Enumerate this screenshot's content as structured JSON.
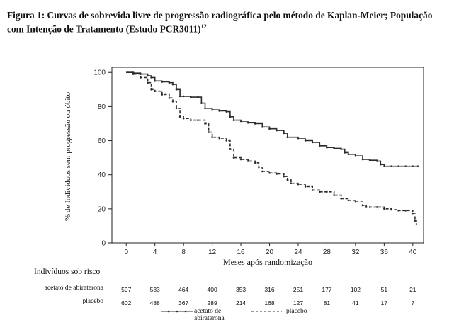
{
  "title": "Figura 1: Curvas de sobrevida livre de progressão radiográfica pelo método de Kaplan-Meier; População com Intenção de Tratamento (Estudo PCR3011)",
  "title_sup": "12",
  "chart_data": {
    "type": "line",
    "xlabel": "Meses após randomização",
    "ylabel": "% de Indivíduos sem progressão ou óbito",
    "xlim": [
      -2,
      41.5
    ],
    "ylim": [
      0,
      103
    ],
    "xticks": [
      0,
      4,
      8,
      12,
      16,
      20,
      24,
      28,
      32,
      36,
      40
    ],
    "yticks": [
      0,
      20,
      40,
      60,
      80,
      100
    ],
    "grid": false,
    "series": [
      {
        "name": "acetato de abiraterona",
        "style": "solid",
        "points": [
          [
            0,
            100
          ],
          [
            1,
            99.6
          ],
          [
            2,
            99
          ],
          [
            3,
            98
          ],
          [
            3.5,
            97
          ],
          [
            4,
            95
          ],
          [
            5,
            94.5
          ],
          [
            6,
            94
          ],
          [
            6.5,
            93
          ],
          [
            7,
            90
          ],
          [
            7.5,
            86
          ],
          [
            8,
            86
          ],
          [
            9,
            85.5
          ],
          [
            10,
            85.5
          ],
          [
            10.5,
            82
          ],
          [
            11,
            79
          ],
          [
            12,
            78
          ],
          [
            13,
            77.5
          ],
          [
            14,
            77
          ],
          [
            14.5,
            74
          ],
          [
            15,
            72
          ],
          [
            16,
            71
          ],
          [
            17,
            70.5
          ],
          [
            18,
            70
          ],
          [
            19,
            68
          ],
          [
            20,
            67
          ],
          [
            21,
            66
          ],
          [
            22,
            64
          ],
          [
            22.5,
            62
          ],
          [
            24,
            61
          ],
          [
            25,
            60
          ],
          [
            26,
            59
          ],
          [
            27,
            57
          ],
          [
            28,
            56
          ],
          [
            29,
            55.5
          ],
          [
            30,
            55
          ],
          [
            30.5,
            53
          ],
          [
            31,
            52
          ],
          [
            32,
            51
          ],
          [
            33,
            49
          ],
          [
            34,
            48.5
          ],
          [
            35,
            48
          ],
          [
            35.5,
            46
          ],
          [
            36,
            45
          ],
          [
            37,
            45
          ],
          [
            38,
            45
          ],
          [
            39,
            45
          ],
          [
            40,
            45
          ],
          [
            40.7,
            45
          ]
        ]
      },
      {
        "name": "placebo",
        "style": "dashed",
        "points": [
          [
            0,
            100
          ],
          [
            1,
            99
          ],
          [
            2,
            97
          ],
          [
            3,
            94
          ],
          [
            3.5,
            90
          ],
          [
            4,
            89
          ],
          [
            5,
            87
          ],
          [
            6,
            85
          ],
          [
            6.5,
            83
          ],
          [
            7,
            79
          ],
          [
            7.5,
            74
          ],
          [
            8,
            73
          ],
          [
            9,
            72
          ],
          [
            10,
            72
          ],
          [
            11,
            70
          ],
          [
            11.5,
            65
          ],
          [
            12,
            62
          ],
          [
            13,
            61
          ],
          [
            14,
            60
          ],
          [
            14.5,
            55
          ],
          [
            15,
            50
          ],
          [
            16,
            49
          ],
          [
            17,
            48
          ],
          [
            18,
            47
          ],
          [
            18.5,
            44
          ],
          [
            19,
            42
          ],
          [
            20,
            41
          ],
          [
            21,
            40.5
          ],
          [
            22,
            39
          ],
          [
            22.5,
            37
          ],
          [
            23,
            35
          ],
          [
            24,
            34
          ],
          [
            25,
            33
          ],
          [
            26,
            31
          ],
          [
            27,
            30
          ],
          [
            28,
            30
          ],
          [
            29,
            28
          ],
          [
            30,
            26
          ],
          [
            31,
            25
          ],
          [
            32,
            24
          ],
          [
            33,
            22
          ],
          [
            33.5,
            21
          ],
          [
            34,
            21
          ],
          [
            35,
            21
          ],
          [
            36,
            20
          ],
          [
            37,
            19.5
          ],
          [
            38,
            19
          ],
          [
            39,
            19
          ],
          [
            40,
            17
          ],
          [
            40.3,
            13
          ],
          [
            40.5,
            11
          ]
        ]
      }
    ]
  },
  "risk_table": {
    "title": "Indivíduos sob risco",
    "times": [
      0,
      4,
      8,
      12,
      16,
      20,
      24,
      28,
      32,
      36,
      40
    ],
    "rows": [
      {
        "label": "acetato de abiraterona",
        "values": [
          "597",
          "533",
          "464",
          "400",
          "353",
          "316",
          "251",
          "177",
          "102",
          "51",
          "21"
        ]
      },
      {
        "label": "placebo",
        "values": [
          "602",
          "488",
          "367",
          "289",
          "214",
          "168",
          "127",
          "81",
          "41",
          "17",
          "7"
        ]
      }
    ]
  },
  "legend": {
    "abiraterone_line1": "acetato de",
    "abiraterone_line2": "abiraterona",
    "placebo": "placebo"
  }
}
